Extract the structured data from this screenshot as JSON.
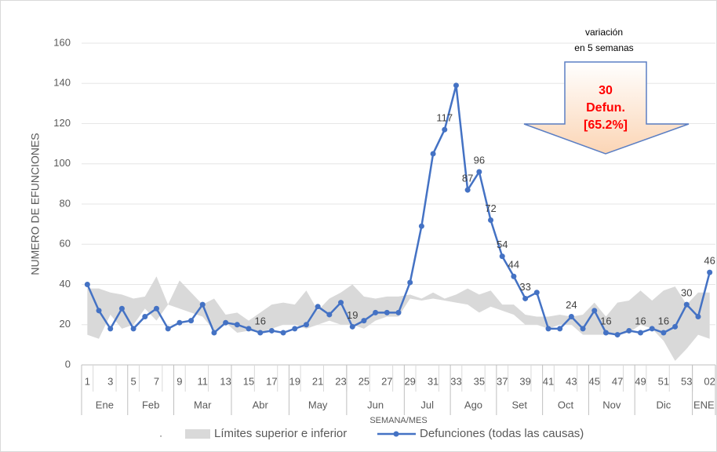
{
  "chart_data": {
    "type": "line",
    "xlabel": "SEMANA/MES",
    "ylabel": "NUMERO DE EFUNCIONES",
    "categories": [
      "1",
      null,
      "3",
      null,
      "5",
      null,
      "7",
      null,
      "9",
      null,
      "11",
      null,
      "13",
      null,
      "15",
      null,
      "17",
      null,
      "19",
      null,
      "21",
      null,
      "23",
      null,
      "25",
      null,
      "27",
      null,
      "29",
      null,
      "31",
      null,
      "33",
      null,
      "35",
      null,
      "37",
      null,
      "39",
      null,
      "41",
      null,
      "43",
      null,
      "45",
      null,
      "47",
      null,
      "49",
      null,
      "51",
      null,
      "53",
      null,
      "02"
    ],
    "groups": [
      {
        "label": "Ene",
        "span": 4
      },
      {
        "label": "Feb",
        "span": 4
      },
      {
        "label": "Mar",
        "span": 5
      },
      {
        "label": "Abr",
        "span": 5
      },
      {
        "label": "May",
        "span": 5
      },
      {
        "label": "Jun",
        "span": 5
      },
      {
        "label": "Jul",
        "span": 4
      },
      {
        "label": "Ago",
        "span": 4
      },
      {
        "label": "Set",
        "span": 4
      },
      {
        "label": "Oct",
        "span": 4
      },
      {
        "label": "Nov",
        "span": 4
      },
      {
        "label": "Dic",
        "span": 5
      },
      {
        "label": "ENE",
        "span": 2
      }
    ],
    "band": {
      "name": "Límites superior e inferior",
      "color": "#d9d9d9",
      "upper": [
        38,
        38,
        36,
        35,
        33,
        34,
        44,
        30,
        42,
        36,
        30,
        33,
        25,
        26,
        22,
        26,
        30,
        31,
        30,
        37,
        27,
        33,
        36,
        40,
        34,
        33,
        34,
        34,
        35,
        33,
        36,
        33,
        35,
        38,
        35,
        37,
        30,
        30,
        25,
        24,
        24,
        25,
        24,
        25,
        31,
        24,
        31,
        32,
        37,
        32,
        37,
        39,
        30,
        36,
        36
      ],
      "lower": [
        15,
        13,
        25,
        18,
        20,
        28,
        22,
        30,
        28,
        26,
        24,
        17,
        21,
        16,
        17,
        16,
        18,
        20,
        20,
        18,
        20,
        22,
        20,
        20,
        18,
        22,
        24,
        24,
        33,
        32,
        33,
        32,
        31,
        30,
        26,
        29,
        27,
        25,
        20,
        20,
        18,
        20,
        20,
        15,
        15,
        15,
        15,
        16,
        20,
        18,
        12,
        2,
        8,
        15,
        13
      ]
    },
    "series": [
      {
        "name": "Defunciones (todas las causas)",
        "color": "#4472c4",
        "values": [
          40,
          27,
          18,
          28,
          18,
          24,
          28,
          18,
          21,
          22,
          30,
          16,
          21,
          20,
          18,
          16,
          17,
          16,
          18,
          20,
          29,
          25,
          31,
          19,
          22,
          26,
          26,
          26,
          41,
          69,
          105,
          117,
          139,
          87,
          96,
          72,
          54,
          44,
          33,
          36,
          18,
          18,
          24,
          18,
          27,
          16,
          15,
          17,
          16,
          18,
          16,
          19,
          30,
          24,
          46
        ],
        "labeled": [
          false,
          false,
          false,
          false,
          false,
          false,
          false,
          false,
          false,
          false,
          false,
          false,
          false,
          false,
          false,
          true,
          false,
          false,
          false,
          false,
          false,
          false,
          false,
          true,
          false,
          false,
          false,
          false,
          false,
          false,
          false,
          true,
          false,
          true,
          true,
          true,
          true,
          true,
          true,
          false,
          false,
          false,
          true,
          false,
          false,
          true,
          false,
          false,
          true,
          false,
          true,
          false,
          true,
          false,
          true
        ]
      }
    ],
    "legend_marker": ".",
    "ylim": [
      0,
      160
    ],
    "yticks": [
      0,
      20,
      40,
      60,
      80,
      100,
      120,
      140,
      160
    ],
    "annotation": {
      "heading": [
        "variación",
        "en 5 semanas"
      ],
      "lines": [
        "30",
        "Defun.",
        "[65.2%]"
      ]
    }
  }
}
